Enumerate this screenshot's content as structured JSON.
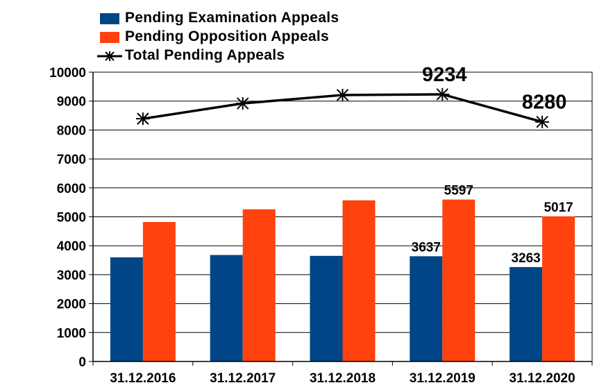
{
  "chart_data": {
    "type": "bar",
    "categories": [
      "31.12.2016",
      "31.12.2017",
      "31.12.2018",
      "31.12.2019",
      "31.12.2020"
    ],
    "series": [
      {
        "name": "Pending Examination Appeals",
        "kind": "bar",
        "color": "#004586",
        "values": [
          3600,
          3680,
          3650,
          3637,
          3263
        ],
        "labels": [
          null,
          null,
          null,
          "3637",
          "3263"
        ]
      },
      {
        "name": "Pending Opposition Appeals",
        "kind": "bar",
        "color": "#ff420e",
        "values": [
          4820,
          5260,
          5570,
          5597,
          5017
        ],
        "labels": [
          null,
          null,
          null,
          "5597",
          "5017"
        ]
      },
      {
        "name": "Total Pending Appeals",
        "kind": "line",
        "color": "#000000",
        "values": [
          8390,
          8920,
          9210,
          9234,
          8280
        ],
        "labels": [
          null,
          null,
          null,
          "9234",
          "8280"
        ]
      }
    ],
    "yticks": [
      "0",
      "1000",
      "2000",
      "3000",
      "4000",
      "5000",
      "6000",
      "7000",
      "8000",
      "9000",
      "10000"
    ],
    "ylim": [
      0,
      10000
    ],
    "grid": true,
    "legend": "top-left"
  }
}
